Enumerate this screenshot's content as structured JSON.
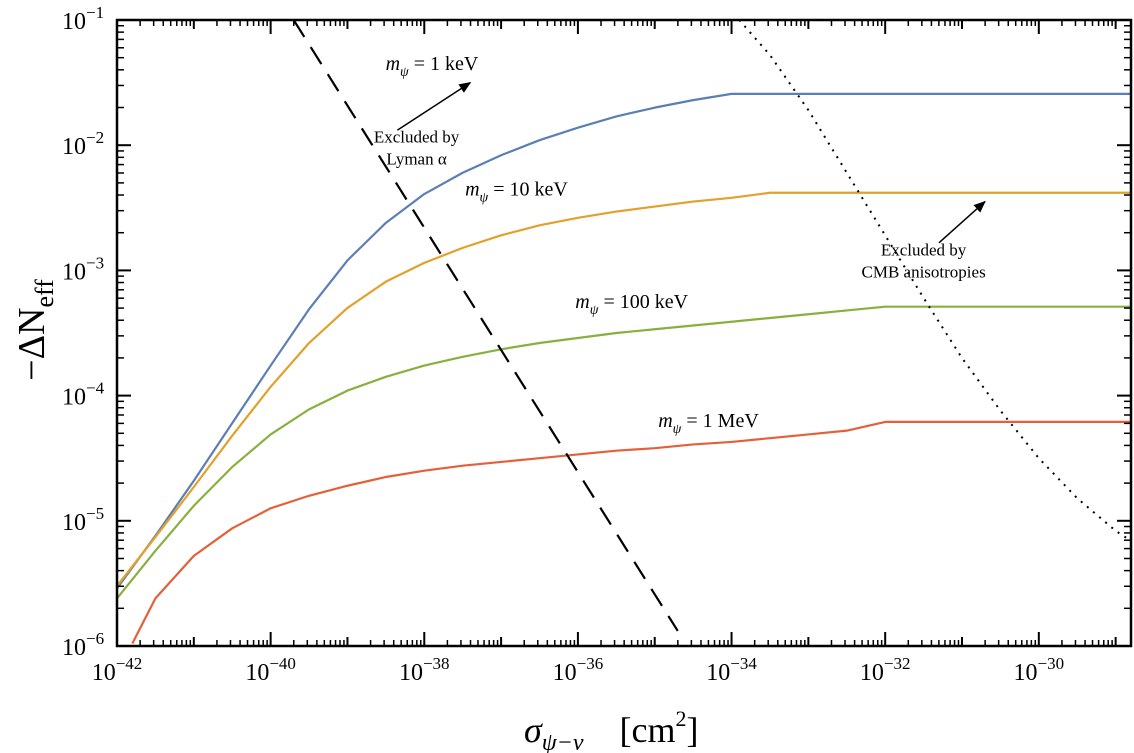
{
  "chart_data": {
    "type": "line",
    "x_scale": "log",
    "y_scale": "log",
    "xlim": [
      -42,
      -28.8
    ],
    "ylim": [
      -6,
      -1
    ],
    "xlabel": "σψ−ν [cm²]",
    "xlabel_symbol": "σ",
    "xlabel_subscript": "ψ−ν",
    "xlabel_unit": "[cm",
    "xlabel_unit_sup": "2",
    "xlabel_unit_close": "]",
    "ylabel": "−ΔNeff",
    "ylabel_main": "−ΔN",
    "ylabel_sub": "eff",
    "x_ticks": [
      {
        "exp": -42,
        "base": "10",
        "sup": "−42"
      },
      {
        "exp": -40,
        "base": "10",
        "sup": "−40"
      },
      {
        "exp": -38,
        "base": "10",
        "sup": "−38"
      },
      {
        "exp": -36,
        "base": "10",
        "sup": "−36"
      },
      {
        "exp": -34,
        "base": "10",
        "sup": "−34"
      },
      {
        "exp": -32,
        "base": "10",
        "sup": "−32"
      },
      {
        "exp": -30,
        "base": "10",
        "sup": "−30"
      }
    ],
    "y_ticks": [
      {
        "exp": -6,
        "base": "10",
        "sup": "−6"
      },
      {
        "exp": -5,
        "base": "10",
        "sup": "−5"
      },
      {
        "exp": -4,
        "base": "10",
        "sup": "−4"
      },
      {
        "exp": -3,
        "base": "10",
        "sup": "−3"
      },
      {
        "exp": -2,
        "base": "10",
        "sup": "−2"
      },
      {
        "exp": -1,
        "base": "10",
        "sup": "−1"
      }
    ],
    "series": [
      {
        "name": "m_psi = 1 keV",
        "label_main": "m",
        "label_sub": "ψ",
        "label_rest": " = 1 keV",
        "label_anchor_log": [
          -37.9,
          -1.4
        ],
        "color": "#5b7fb4",
        "log_x": [
          -42,
          -41.5,
          -41,
          -40.5,
          -40,
          -39.5,
          -39,
          -38.5,
          -38,
          -37.5,
          -37,
          -36.5,
          -36,
          -35.5,
          -35,
          -34.5,
          -34,
          -33,
          -32,
          -31,
          -30,
          -28.8
        ],
        "log_y": [
          -5.54,
          -5.12,
          -4.68,
          -4.22,
          -3.76,
          -3.31,
          -2.92,
          -2.62,
          -2.39,
          -2.22,
          -2.08,
          -1.96,
          -1.86,
          -1.77,
          -1.7,
          -1.64,
          -1.59,
          -1.59,
          -1.59,
          -1.59,
          -1.59,
          -1.59
        ]
      },
      {
        "name": "m_psi = 10 keV",
        "label_main": "m",
        "label_sub": "ψ",
        "label_rest": " = 10 keV",
        "label_anchor_log": [
          -36.8,
          -2.4
        ],
        "color": "#e3a02a",
        "log_x": [
          -42,
          -41.5,
          -41,
          -40.5,
          -40,
          -39.5,
          -39,
          -38.5,
          -38,
          -37.5,
          -37,
          -36.5,
          -36,
          -35.5,
          -35,
          -34.5,
          -34,
          -33.5,
          -33,
          -32,
          -31,
          -30,
          -28.8
        ],
        "log_y": [
          -5.52,
          -5.13,
          -4.73,
          -4.32,
          -3.93,
          -3.58,
          -3.3,
          -3.09,
          -2.94,
          -2.82,
          -2.72,
          -2.64,
          -2.58,
          -2.53,
          -2.49,
          -2.45,
          -2.42,
          -2.38,
          -2.38,
          -2.38,
          -2.38,
          -2.38,
          -2.38
        ]
      },
      {
        "name": "m_psi = 100 keV",
        "label_main": "m",
        "label_sub": "ψ",
        "label_rest": " = 100 keV",
        "label_anchor_log": [
          -35.3,
          -3.3
        ],
        "color": "#88b03e",
        "log_x": [
          -42,
          -41.5,
          -41,
          -40.5,
          -40,
          -39.5,
          -39,
          -38.5,
          -38,
          -37.5,
          -37,
          -36.5,
          -36,
          -35.5,
          -35,
          -34.5,
          -34,
          -33.5,
          -33,
          -32.5,
          -32,
          -31,
          -30,
          -28.8
        ],
        "log_y": [
          -5.62,
          -5.24,
          -4.88,
          -4.57,
          -4.31,
          -4.11,
          -3.96,
          -3.85,
          -3.76,
          -3.69,
          -3.63,
          -3.58,
          -3.54,
          -3.5,
          -3.47,
          -3.44,
          -3.41,
          -3.38,
          -3.35,
          -3.32,
          -3.29,
          -3.29,
          -3.29,
          -3.29
        ]
      },
      {
        "name": "m_psi = 1 MeV",
        "label_main": "m",
        "label_sub": "ψ",
        "label_rest": " = 1 MeV",
        "label_anchor_log": [
          -34.3,
          -4.25
        ],
        "color": "#e4603a",
        "log_x": [
          -41.8,
          -41.5,
          -41,
          -40.5,
          -40,
          -39.5,
          -39,
          -38.5,
          -38,
          -37.5,
          -37,
          -36.5,
          -36,
          -35.5,
          -35,
          -34.5,
          -34,
          -33.5,
          -33,
          -32.5,
          -32,
          -31,
          -30,
          -28.8
        ],
        "log_y": [
          -5.98,
          -5.62,
          -5.28,
          -5.06,
          -4.9,
          -4.8,
          -4.72,
          -4.65,
          -4.6,
          -4.56,
          -4.53,
          -4.5,
          -4.47,
          -4.44,
          -4.42,
          -4.39,
          -4.37,
          -4.34,
          -4.31,
          -4.28,
          -4.21,
          -4.21,
          -4.21,
          -4.21
        ]
      }
    ],
    "bounds": [
      {
        "name": "Lyman alpha",
        "style": "dashed",
        "log_x": [
          -39.7,
          -34.7
        ],
        "log_y": [
          -1.0,
          -5.88
        ]
      },
      {
        "name": "CMB anisotropies",
        "style": "dotted",
        "log_x": [
          -33.9,
          -33.5,
          -33.0,
          -32.5,
          -32.0,
          -31.5,
          -31.0,
          -30.5,
          -30.0,
          -29.5,
          -29.0,
          -28.8
        ],
        "log_y": [
          -1.0,
          -1.28,
          -1.72,
          -2.22,
          -2.72,
          -3.22,
          -3.7,
          -4.12,
          -4.5,
          -4.82,
          -5.08,
          -5.16
        ]
      }
    ],
    "annotations": [
      {
        "id": "lyman",
        "lines": [
          "Excluded by",
          "Lyman α"
        ],
        "anchor_log": [
          -38.1,
          -1.98
        ]
      },
      {
        "id": "cmb",
        "lines": [
          "Excluded by",
          "CMB anisotropies"
        ],
        "anchor_log": [
          -31.5,
          -2.88
        ]
      }
    ],
    "arrows": [
      {
        "id": "lyman-arrow",
        "from_log": [
          -38.35,
          -1.88
        ],
        "to_log": [
          -37.4,
          -1.5
        ]
      },
      {
        "id": "cmb-arrow",
        "from_log": [
          -31.3,
          -2.78
        ],
        "to_log": [
          -30.7,
          -2.45
        ]
      }
    ]
  }
}
